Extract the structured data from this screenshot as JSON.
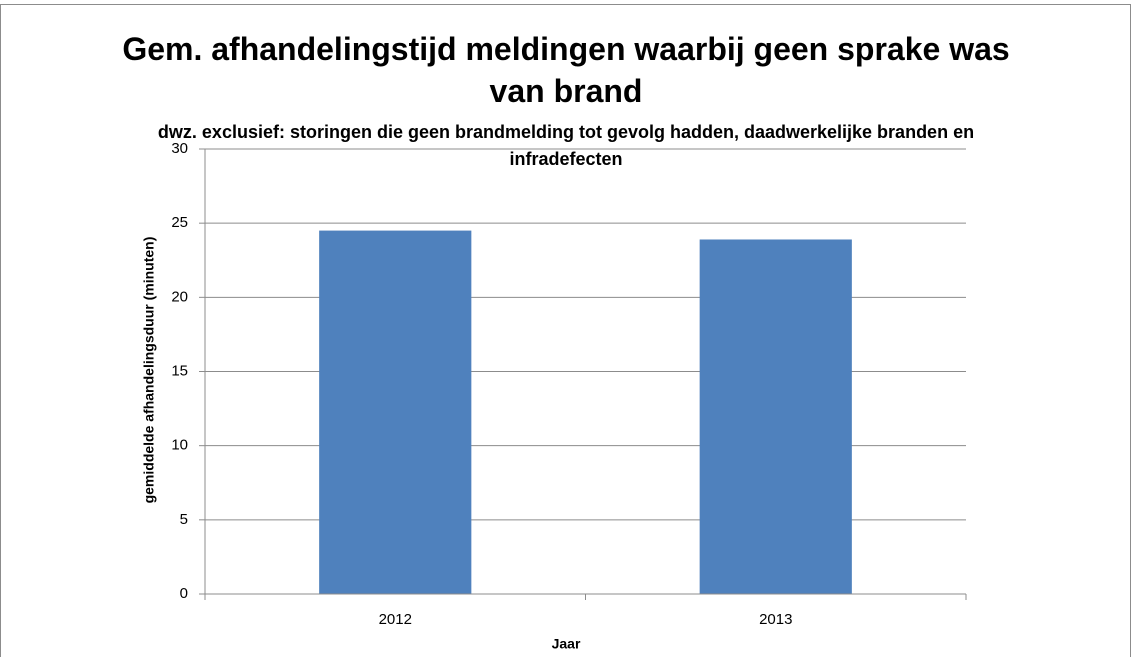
{
  "chart_data": {
    "type": "bar",
    "title": "Gem. afhandelingstijd meldingen waarbij geen sprake was van brand",
    "subtitle": "dwz. exclusief: storingen die geen brandmelding tot gevolg hadden, daadwerkelijke branden en infradefecten",
    "x_label": "Jaar",
    "y_label": "gemiddelde afhandelingsduur (minuten)",
    "categories": [
      "2012",
      "2013"
    ],
    "values": [
      24.5,
      23.9
    ],
    "color": "#4f81bd",
    "ylim": [
      0,
      30
    ],
    "yticks": [
      0,
      5,
      10,
      15,
      20,
      25,
      30
    ],
    "grid": true
  }
}
